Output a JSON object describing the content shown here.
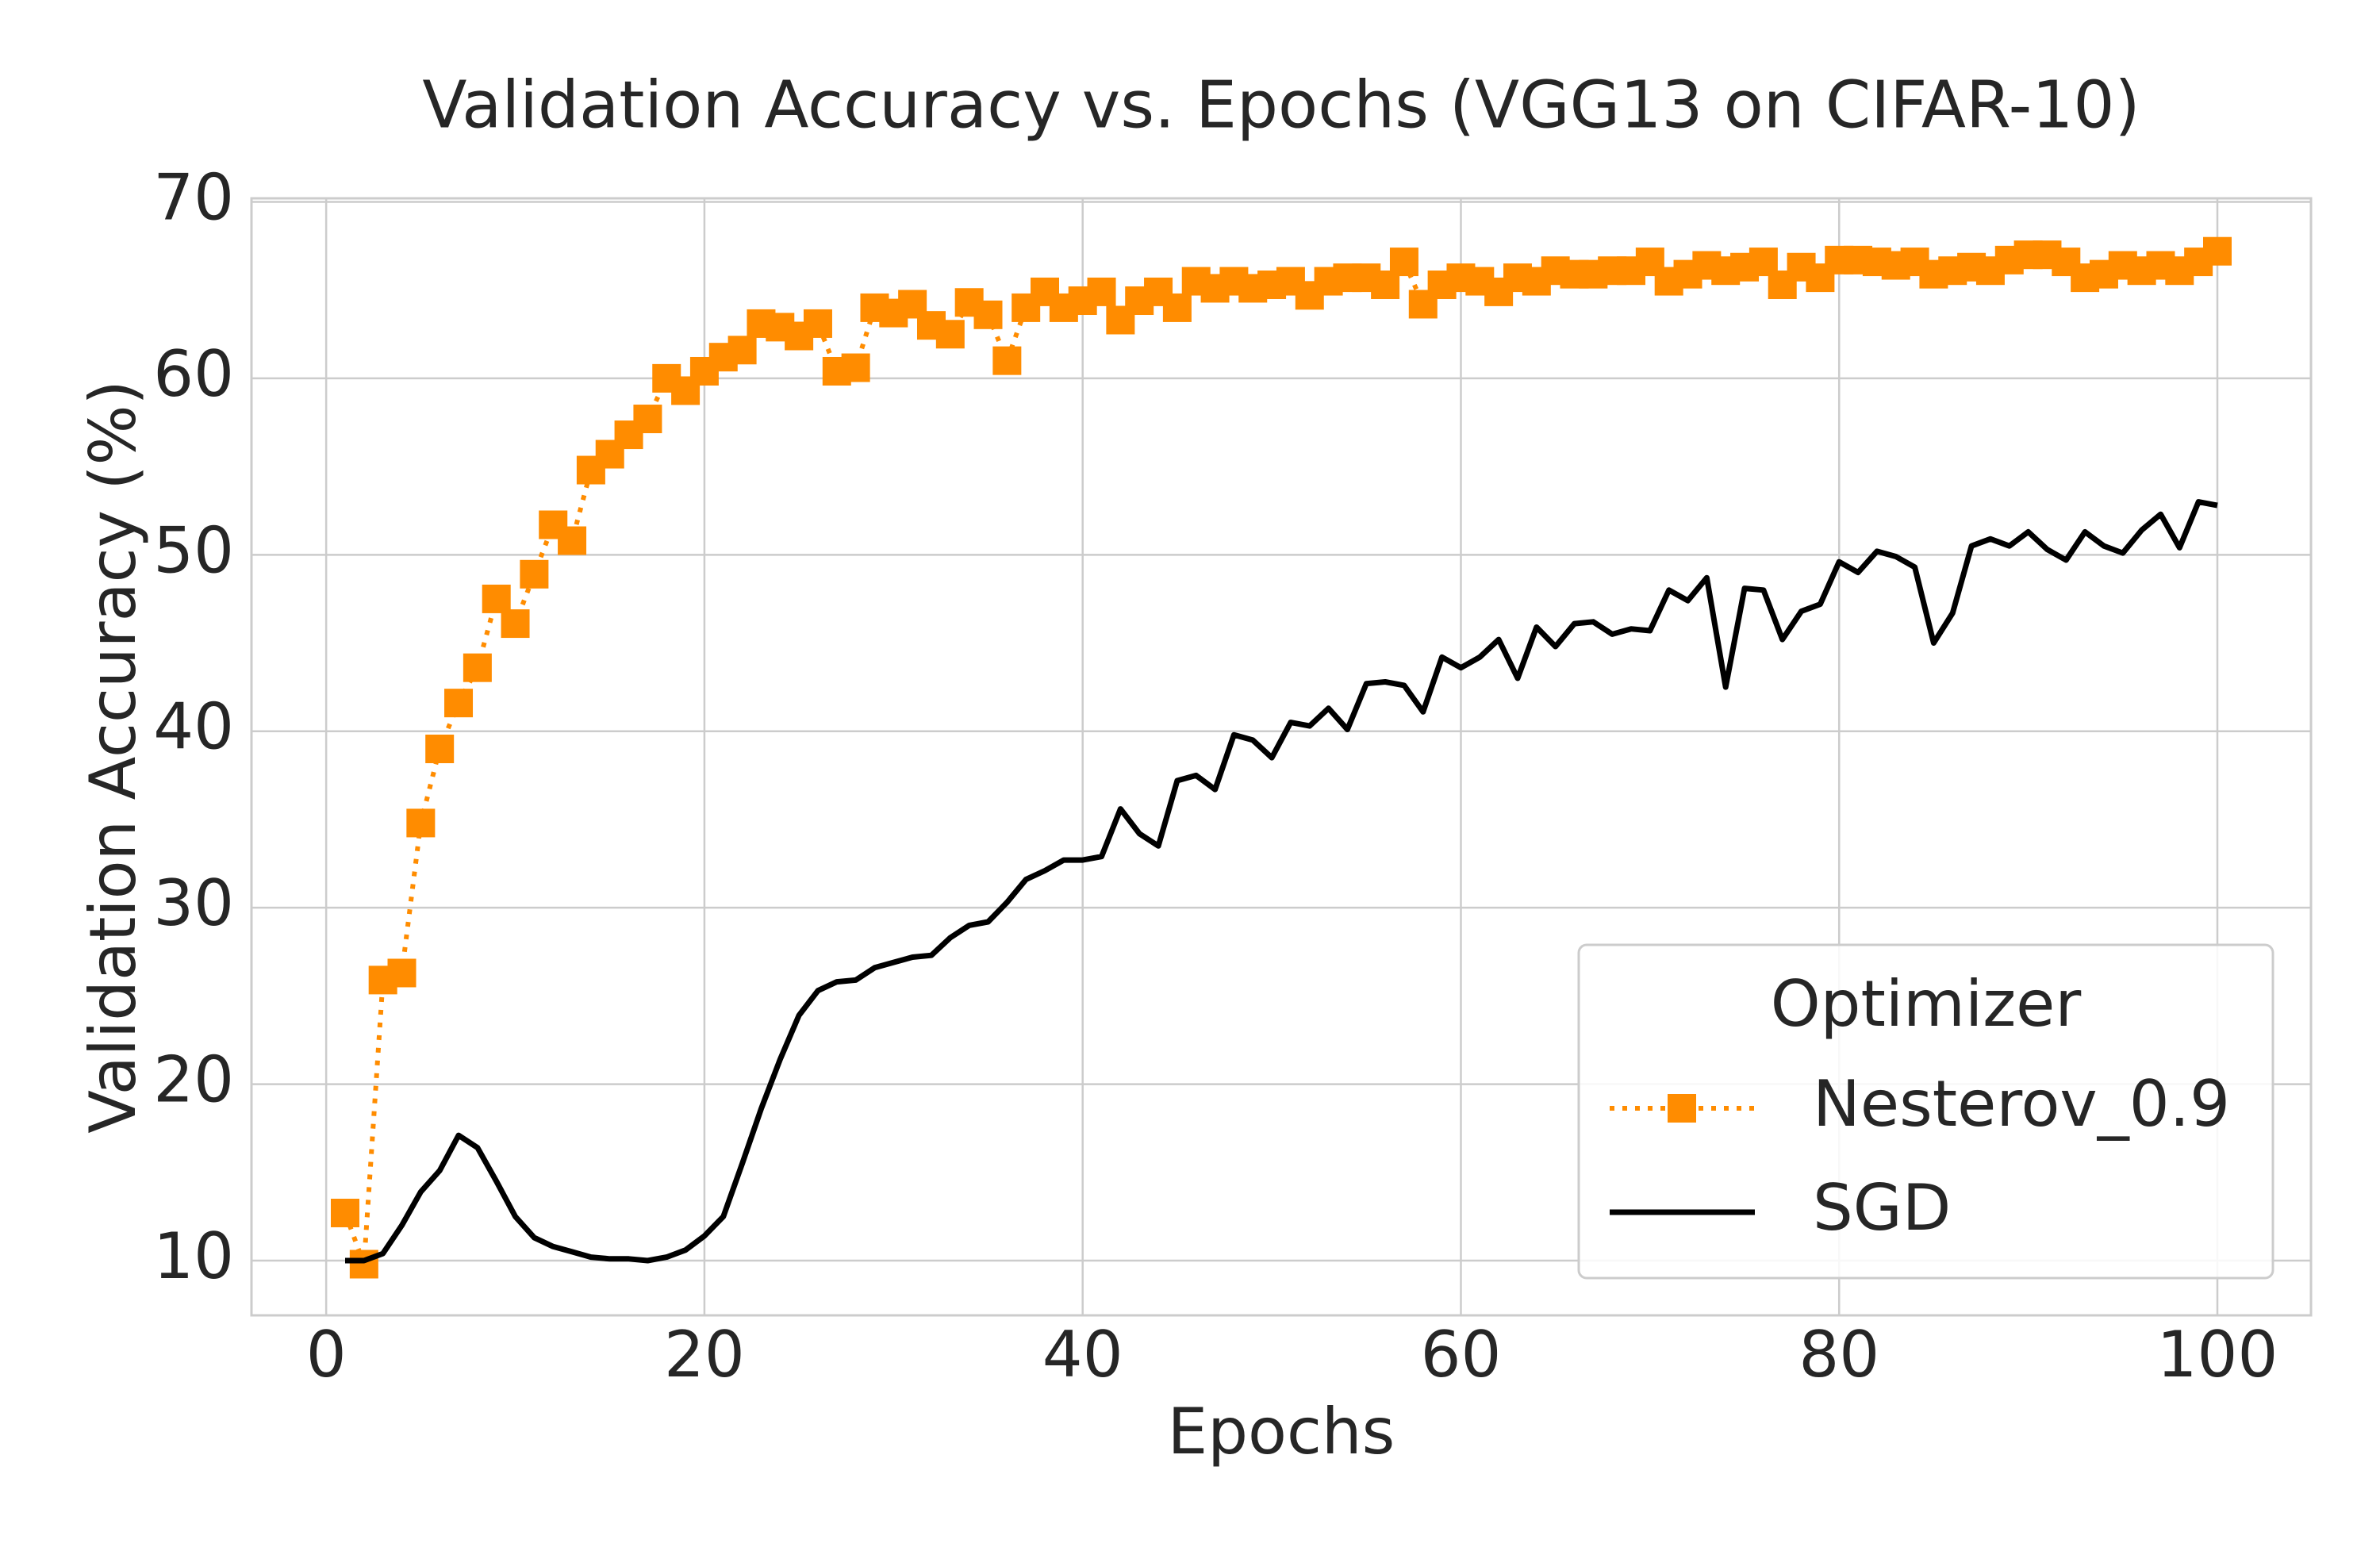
{
  "chart_data": {
    "type": "line",
    "title": "Validation Accuracy vs. Epochs (VGG13 on CIFAR-10)",
    "x_label": "Epochs",
    "y_label": "Validation Accuracy (%)",
    "x": [
      1,
      2,
      3,
      4,
      5,
      6,
      7,
      8,
      9,
      10,
      11,
      12,
      13,
      14,
      15,
      16,
      17,
      18,
      19,
      20,
      21,
      22,
      23,
      24,
      25,
      26,
      27,
      28,
      29,
      30,
      31,
      32,
      33,
      34,
      35,
      36,
      37,
      38,
      39,
      40,
      41,
      42,
      43,
      44,
      45,
      46,
      47,
      48,
      49,
      50,
      51,
      52,
      53,
      54,
      55,
      56,
      57,
      58,
      59,
      60,
      61,
      62,
      63,
      64,
      65,
      66,
      67,
      68,
      69,
      70,
      71,
      72,
      73,
      74,
      75,
      76,
      77,
      78,
      79,
      80,
      81,
      82,
      83,
      84,
      85,
      86,
      87,
      88,
      89,
      90,
      91,
      92,
      93,
      94,
      95,
      96,
      97,
      98,
      99,
      100
    ],
    "series": [
      {
        "name": "Nesterov_0.9",
        "color": "#ff8c00",
        "linestyle": "dotted",
        "marker": "square",
        "values": [
          12.7,
          9.8,
          25.9,
          26.3,
          34.8,
          39.0,
          41.6,
          43.6,
          47.5,
          46.1,
          48.9,
          51.7,
          50.8,
          54.8,
          55.7,
          56.8,
          57.7,
          60.0,
          59.3,
          60.4,
          61.2,
          61.6,
          63.1,
          62.9,
          62.4,
          63.1,
          60.4,
          60.6,
          64.0,
          63.7,
          64.2,
          63.0,
          62.5,
          64.3,
          63.6,
          61.0,
          64.0,
          64.9,
          64.0,
          64.4,
          64.9,
          63.3,
          64.4,
          64.9,
          64.0,
          65.5,
          65.1,
          65.5,
          65.1,
          65.3,
          65.5,
          64.7,
          65.5,
          65.7,
          65.7,
          65.3,
          66.6,
          64.2,
          65.3,
          65.7,
          65.5,
          64.9,
          65.7,
          65.5,
          66.1,
          65.9,
          65.9,
          66.1,
          66.1,
          66.6,
          65.5,
          65.9,
          66.4,
          66.1,
          66.3,
          66.6,
          65.3,
          66.3,
          65.7,
          66.7,
          66.7,
          66.6,
          66.4,
          66.6,
          65.9,
          66.1,
          66.3,
          66.1,
          66.7,
          67.0,
          67.0,
          66.6,
          65.7,
          65.9,
          66.4,
          66.1,
          66.4,
          66.1,
          66.6,
          67.2
        ]
      },
      {
        "name": "SGD",
        "color": "#000000",
        "linestyle": "solid",
        "marker": "none",
        "values": [
          10.0,
          10.0,
          10.4,
          12.0,
          13.9,
          15.1,
          17.1,
          16.4,
          14.5,
          12.5,
          11.3,
          10.8,
          10.5,
          10.2,
          10.1,
          10.1,
          10.0,
          10.2,
          10.6,
          11.4,
          12.5,
          15.5,
          18.6,
          21.4,
          23.9,
          25.3,
          25.8,
          25.9,
          26.6,
          26.9,
          27.2,
          27.3,
          28.3,
          29.0,
          29.2,
          30.3,
          31.6,
          32.1,
          32.7,
          32.7,
          32.9,
          35.6,
          34.2,
          33.5,
          37.2,
          37.5,
          36.7,
          39.8,
          39.5,
          38.5,
          40.5,
          40.3,
          41.3,
          40.1,
          42.7,
          42.8,
          42.6,
          41.1,
          44.2,
          43.6,
          44.2,
          45.2,
          43.0,
          45.9,
          44.8,
          46.1,
          46.2,
          45.5,
          45.8,
          45.7,
          48.0,
          47.4,
          48.7,
          42.5,
          48.1,
          48.0,
          45.2,
          46.8,
          47.2,
          49.6,
          49.0,
          50.2,
          49.9,
          49.3,
          45.0,
          46.7,
          50.5,
          50.9,
          50.5,
          51.3,
          50.3,
          49.7,
          51.3,
          50.5,
          50.1,
          51.4,
          52.3,
          50.4,
          53.0,
          52.8
        ]
      }
    ],
    "xlim": [
      -3.95,
      104.95
    ],
    "ylim": [
      6.9,
      70.2
    ],
    "xticks": [
      0,
      20,
      40,
      60,
      80,
      100
    ],
    "yticks": [
      10,
      20,
      30,
      40,
      50,
      60,
      70
    ],
    "grid": true,
    "legend": {
      "title": "Optimizer",
      "position": "lower right"
    }
  }
}
